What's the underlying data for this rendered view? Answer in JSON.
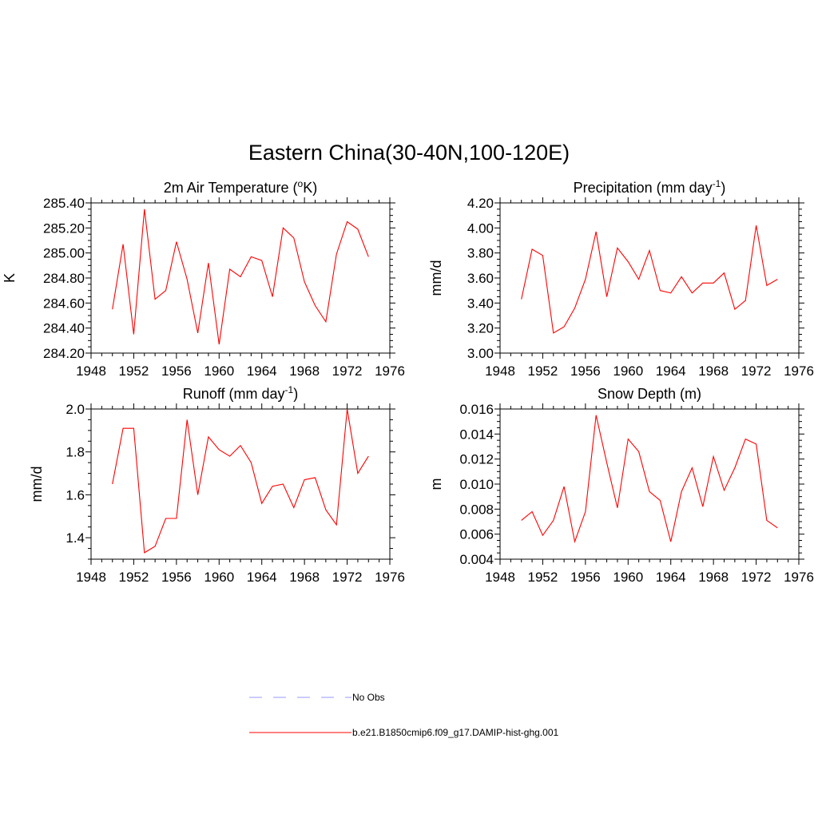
{
  "figure": {
    "title": "Eastern China(30-40N,100-120E)"
  },
  "legend": [
    {
      "label": "No Obs",
      "color": "#9999ff",
      "dash": "dashed"
    },
    {
      "label": "b.e21.B1850cmip6.f09_g17.DAMIP-hist-ghg.001",
      "color": "#ff0000",
      "dash": "solid"
    }
  ],
  "chart_data": [
    {
      "type": "line",
      "title_main": "2m Air Temperature (",
      "title_sup": "o",
      "title_tail": "K)",
      "ylabel": "K",
      "xlim": [
        1948,
        1976
      ],
      "xticks": [
        "1948",
        "1952",
        "1956",
        "1960",
        "1964",
        "1968",
        "1972",
        "1976"
      ],
      "ylim": [
        284.2,
        285.4
      ],
      "yticks": [
        "284.20",
        "284.40",
        "284.60",
        "284.80",
        "285.00",
        "285.20",
        "285.40"
      ],
      "x": [
        1950,
        1951,
        1952,
        1953,
        1954,
        1955,
        1956,
        1957,
        1958,
        1959,
        1960,
        1961,
        1962,
        1963,
        1964,
        1965,
        1966,
        1967,
        1968,
        1969,
        1970,
        1971,
        1972,
        1973,
        1974
      ],
      "series": [
        {
          "color": "#ff0000",
          "values": [
            284.55,
            285.07,
            284.35,
            285.35,
            284.63,
            284.7,
            285.09,
            284.79,
            284.36,
            284.92,
            284.27,
            284.87,
            284.81,
            284.97,
            284.94,
            284.65,
            285.2,
            285.12,
            284.77,
            284.58,
            284.45,
            284.99,
            285.25,
            285.19,
            284.97
          ]
        }
      ]
    },
    {
      "type": "line",
      "title_main": "Precipitation (mm day",
      "title_sup": "-1",
      "title_tail": ")",
      "ylabel": "mm/d",
      "xlim": [
        1948,
        1976
      ],
      "xticks": [
        "1948",
        "1952",
        "1956",
        "1960",
        "1964",
        "1968",
        "1972",
        "1976"
      ],
      "ylim": [
        3.0,
        4.2
      ],
      "yticks": [
        "3.00",
        "3.20",
        "3.40",
        "3.60",
        "3.80",
        "4.00",
        "4.20"
      ],
      "x": [
        1950,
        1951,
        1952,
        1953,
        1954,
        1955,
        1956,
        1957,
        1958,
        1959,
        1960,
        1961,
        1962,
        1963,
        1964,
        1965,
        1966,
        1967,
        1968,
        1969,
        1970,
        1971,
        1972,
        1973,
        1974
      ],
      "series": [
        {
          "color": "#ff0000",
          "values": [
            3.43,
            3.83,
            3.78,
            3.16,
            3.21,
            3.36,
            3.59,
            3.97,
            3.45,
            3.84,
            3.73,
            3.59,
            3.82,
            3.5,
            3.48,
            3.61,
            3.48,
            3.56,
            3.56,
            3.64,
            3.35,
            3.42,
            4.02,
            3.54,
            3.59
          ]
        }
      ]
    },
    {
      "type": "line",
      "title_main": "Runoff (mm day",
      "title_sup": "-1",
      "title_tail": ")",
      "ylabel": "mm/d",
      "xlim": [
        1948,
        1976
      ],
      "xticks": [
        "1948",
        "1952",
        "1956",
        "1960",
        "1964",
        "1968",
        "1972",
        "1976"
      ],
      "ylim": [
        1.3,
        2.0
      ],
      "yticks": [
        "1.4",
        "1.6",
        "1.8",
        "2.0"
      ],
      "x": [
        1950,
        1951,
        1952,
        1953,
        1954,
        1955,
        1956,
        1957,
        1958,
        1959,
        1960,
        1961,
        1962,
        1963,
        1964,
        1965,
        1966,
        1967,
        1968,
        1969,
        1970,
        1971,
        1972,
        1973,
        1974
      ],
      "series": [
        {
          "color": "#ff0000",
          "values": [
            1.65,
            1.91,
            1.91,
            1.33,
            1.36,
            1.49,
            1.49,
            1.95,
            1.6,
            1.87,
            1.81,
            1.78,
            1.83,
            1.75,
            1.56,
            1.64,
            1.65,
            1.54,
            1.67,
            1.68,
            1.53,
            1.46,
            2.0,
            1.7,
            1.78
          ]
        }
      ]
    },
    {
      "type": "line",
      "title_main": "Snow Depth (m)",
      "title_sup": "",
      "title_tail": "",
      "ylabel": "m",
      "xlim": [
        1948,
        1976
      ],
      "xticks": [
        "1948",
        "1952",
        "1956",
        "1960",
        "1964",
        "1968",
        "1972",
        "1976"
      ],
      "ylim": [
        0.004,
        0.016
      ],
      "yticks": [
        "0.004",
        "0.006",
        "0.008",
        "0.010",
        "0.012",
        "0.014",
        "0.016"
      ],
      "x": [
        1950,
        1951,
        1952,
        1953,
        1954,
        1955,
        1956,
        1957,
        1958,
        1959,
        1960,
        1961,
        1962,
        1963,
        1964,
        1965,
        1966,
        1967,
        1968,
        1969,
        1970,
        1971,
        1972,
        1973,
        1974
      ],
      "series": [
        {
          "color": "#ff0000",
          "values": [
            0.0071,
            0.0078,
            0.0059,
            0.0071,
            0.0098,
            0.0054,
            0.0078,
            0.0155,
            0.0117,
            0.0081,
            0.0136,
            0.0126,
            0.0094,
            0.0087,
            0.0054,
            0.0094,
            0.0113,
            0.0082,
            0.0122,
            0.0095,
            0.0113,
            0.0136,
            0.0132,
            0.0071,
            0.0065
          ]
        }
      ]
    }
  ]
}
